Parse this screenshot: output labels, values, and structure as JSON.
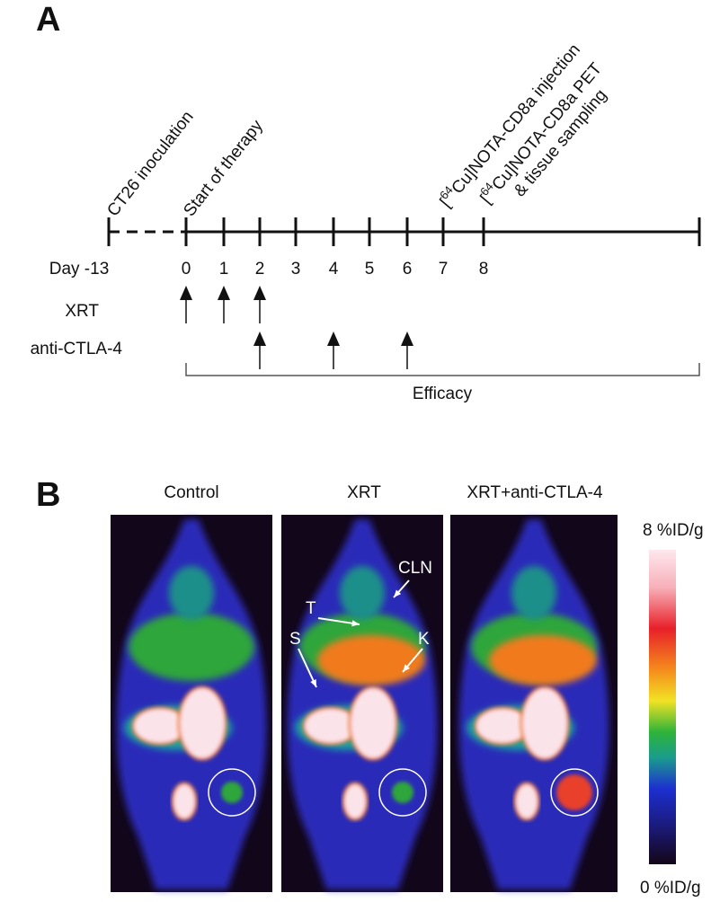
{
  "panel_a": {
    "label": "A",
    "events": [
      "CT26 inoculation",
      "Start of therapy"
    ],
    "bracket": "[",
    "isotope": "64",
    "injection": "Cu]NOTA-CD8a injection",
    "pet_line1": "Cu]NOTA-CD8a  PET",
    "pet_line2": "& tissue sampling",
    "days": [
      "Day -13",
      "0",
      "1",
      "2",
      "3",
      "4",
      "5",
      "6",
      "7",
      "8"
    ],
    "rows": [
      "XRT",
      "anti-CTLA-4"
    ],
    "efficacy": "Efficacy"
  },
  "panel_b": {
    "label": "B",
    "images": [
      "Control",
      "XRT",
      "XRT+anti-CTLA-4"
    ],
    "annotations": [
      "CLN",
      "T",
      "S",
      "K"
    ],
    "scale_max": "8 %ID/g",
    "scale_min": "0 %ID/g"
  }
}
